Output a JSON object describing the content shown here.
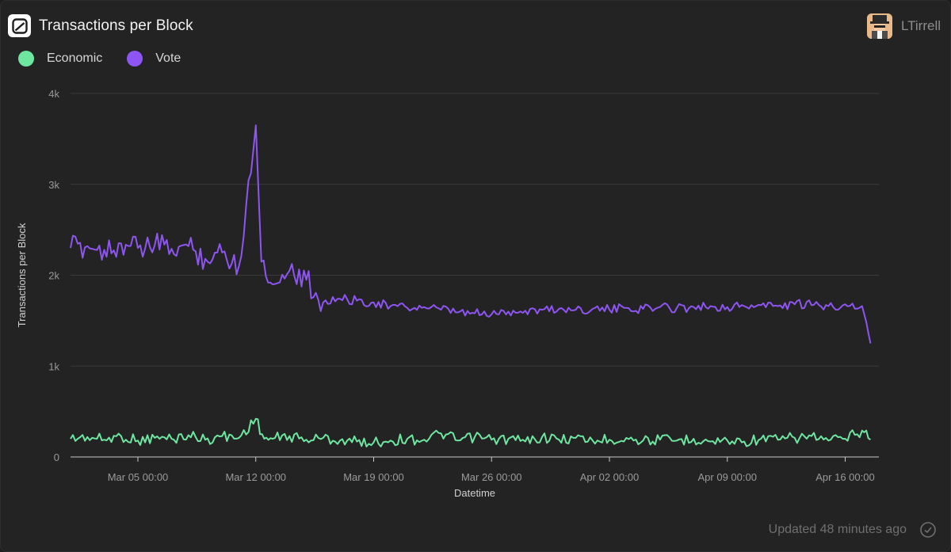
{
  "header": {
    "title": "Transactions per Block",
    "logo_icon": "dune-logo-icon"
  },
  "user": {
    "name": "LTirrell",
    "avatar_icon": "user-avatar"
  },
  "footer": {
    "updated": "Updated 48 minutes ago",
    "status_icon": "check-circle-icon"
  },
  "colors": {
    "economic": "#6ee6a0",
    "vote": "#8f55f2",
    "background": "#232323",
    "grid": "#3a3a3a"
  },
  "chart_data": {
    "type": "line",
    "xlabel": "Datetime",
    "ylabel": "Transactions per Block",
    "ylim": [
      0,
      4000
    ],
    "xlim": [
      "2022-03-01",
      "2022-04-18"
    ],
    "yticks": [
      0,
      1000,
      2000,
      3000,
      4000
    ],
    "ytick_labels": [
      "0",
      "1k",
      "2k",
      "3k",
      "4k"
    ],
    "xticks": [
      "2022-03-05",
      "2022-03-12",
      "2022-03-19",
      "2022-03-26",
      "2022-04-02",
      "2022-04-09",
      "2022-04-16"
    ],
    "xtick_labels": [
      "Mar 05 00:00",
      "Mar 12 00:00",
      "Mar 19 00:00",
      "Mar 26 00:00",
      "Apr 02 00:00",
      "Apr 09 00:00",
      "Apr 16 00:00"
    ],
    "grid": true,
    "legend_position": "top-left",
    "series": [
      {
        "name": "Economic",
        "color": "#6ee6a0",
        "points": [
          [
            "2022-03-01",
            200
          ],
          [
            "2022-03-02",
            220
          ],
          [
            "2022-03-03",
            190
          ],
          [
            "2022-03-04",
            230
          ],
          [
            "2022-03-05",
            180
          ],
          [
            "2022-03-06",
            210
          ],
          [
            "2022-03-07",
            200
          ],
          [
            "2022-03-08",
            240
          ],
          [
            "2022-03-09",
            190
          ],
          [
            "2022-03-10",
            230
          ],
          [
            "2022-03-11",
            210
          ],
          [
            "2022-03-12",
            420
          ],
          [
            "2022-03-12T12:00",
            200
          ],
          [
            "2022-03-13",
            200
          ],
          [
            "2022-03-14",
            230
          ],
          [
            "2022-03-15",
            190
          ],
          [
            "2022-03-16",
            210
          ],
          [
            "2022-03-17",
            180
          ],
          [
            "2022-03-18",
            170
          ],
          [
            "2022-03-19",
            160
          ],
          [
            "2022-03-20",
            180
          ],
          [
            "2022-03-21",
            200
          ],
          [
            "2022-03-22",
            190
          ],
          [
            "2022-03-23",
            260
          ],
          [
            "2022-03-24",
            180
          ],
          [
            "2022-03-25",
            220
          ],
          [
            "2022-03-26",
            190
          ],
          [
            "2022-03-27",
            200
          ],
          [
            "2022-03-28",
            170
          ],
          [
            "2022-03-29",
            220
          ],
          [
            "2022-03-30",
            190
          ],
          [
            "2022-03-31",
            210
          ],
          [
            "2022-04-01",
            180
          ],
          [
            "2022-04-02",
            190
          ],
          [
            "2022-04-03",
            210
          ],
          [
            "2022-04-04",
            180
          ],
          [
            "2022-04-05",
            190
          ],
          [
            "2022-04-06",
            180
          ],
          [
            "2022-04-07",
            200
          ],
          [
            "2022-04-08",
            170
          ],
          [
            "2022-04-09",
            180
          ],
          [
            "2022-04-10",
            170
          ],
          [
            "2022-04-11",
            200
          ],
          [
            "2022-04-12",
            190
          ],
          [
            "2022-04-13",
            210
          ],
          [
            "2022-04-14",
            230
          ],
          [
            "2022-04-15",
            180
          ],
          [
            "2022-04-16",
            200
          ],
          [
            "2022-04-17",
            290
          ],
          [
            "2022-04-17T12:00",
            190
          ]
        ]
      },
      {
        "name": "Vote",
        "color": "#8f55f2",
        "points": [
          [
            "2022-03-01",
            2300
          ],
          [
            "2022-03-02",
            2320
          ],
          [
            "2022-03-03",
            2280
          ],
          [
            "2022-03-04",
            2350
          ],
          [
            "2022-03-05",
            2300
          ],
          [
            "2022-03-06",
            2330
          ],
          [
            "2022-03-07",
            2290
          ],
          [
            "2022-03-08",
            2320
          ],
          [
            "2022-03-09",
            2180
          ],
          [
            "2022-03-10",
            2250
          ],
          [
            "2022-03-11",
            2100
          ],
          [
            "2022-03-12",
            3650
          ],
          [
            "2022-03-12T08:00",
            2150
          ],
          [
            "2022-03-13",
            1900
          ],
          [
            "2022-03-14",
            2050
          ],
          [
            "2022-03-15",
            1950
          ],
          [
            "2022-03-16",
            1700
          ],
          [
            "2022-03-17",
            1740
          ],
          [
            "2022-03-18",
            1720
          ],
          [
            "2022-03-19",
            1700
          ],
          [
            "2022-03-20",
            1660
          ],
          [
            "2022-03-21",
            1640
          ],
          [
            "2022-03-22",
            1650
          ],
          [
            "2022-03-23",
            1620
          ],
          [
            "2022-03-24",
            1590
          ],
          [
            "2022-03-25",
            1580
          ],
          [
            "2022-03-26",
            1570
          ],
          [
            "2022-03-27",
            1600
          ],
          [
            "2022-03-28",
            1610
          ],
          [
            "2022-03-29",
            1620
          ],
          [
            "2022-03-30",
            1630
          ],
          [
            "2022-03-31",
            1620
          ],
          [
            "2022-04-01",
            1630
          ],
          [
            "2022-04-02",
            1620
          ],
          [
            "2022-04-03",
            1640
          ],
          [
            "2022-04-04",
            1630
          ],
          [
            "2022-04-05",
            1650
          ],
          [
            "2022-04-06",
            1640
          ],
          [
            "2022-04-07",
            1650
          ],
          [
            "2022-04-08",
            1660
          ],
          [
            "2022-04-09",
            1650
          ],
          [
            "2022-04-10",
            1660
          ],
          [
            "2022-04-11",
            1670
          ],
          [
            "2022-04-12",
            1660
          ],
          [
            "2022-04-13",
            1680
          ],
          [
            "2022-04-14",
            1670
          ],
          [
            "2022-04-15",
            1660
          ],
          [
            "2022-04-16",
            1680
          ],
          [
            "2022-04-17",
            1660
          ],
          [
            "2022-04-17T12:00",
            1250
          ]
        ]
      }
    ]
  }
}
